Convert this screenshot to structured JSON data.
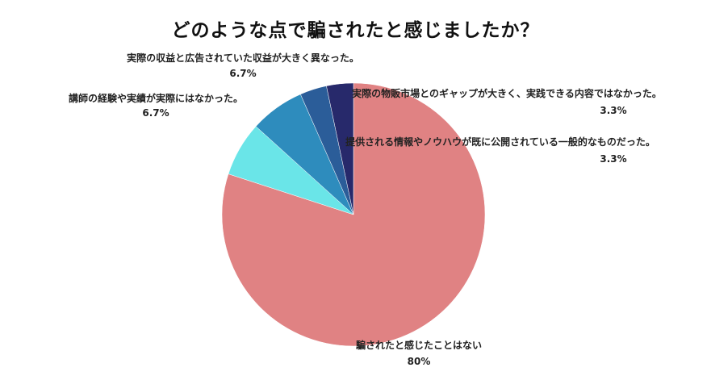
{
  "chart_data": {
    "type": "pie",
    "title": "どのような点で騙されたと感じましたか？",
    "slices": [
      {
        "label": "騙されたと感じたことはない",
        "value": 80,
        "value_label": "80%",
        "color": "#e08283"
      },
      {
        "label": "講師の経験や実績が実際にはなかった。",
        "value": 6.7,
        "value_label": "6.7%",
        "color": "#6ae5e8"
      },
      {
        "label": "実際の収益と広告されていた収益が大きく異なった。",
        "value": 6.7,
        "value_label": "6.7%",
        "color": "#2e8cbd"
      },
      {
        "label": "提供される情報やノウハウが既に公開されている一般的なものだった。",
        "value": 3.3,
        "value_label": "3.3%",
        "color": "#2b5d99"
      },
      {
        "label": "実際の物販市場とのギャップが大きく、実践できる内容ではなかった。",
        "value": 3.3,
        "value_label": "3.3%",
        "color": "#27296b"
      }
    ],
    "start": "top",
    "direction": "clockwise",
    "legend": "none"
  }
}
